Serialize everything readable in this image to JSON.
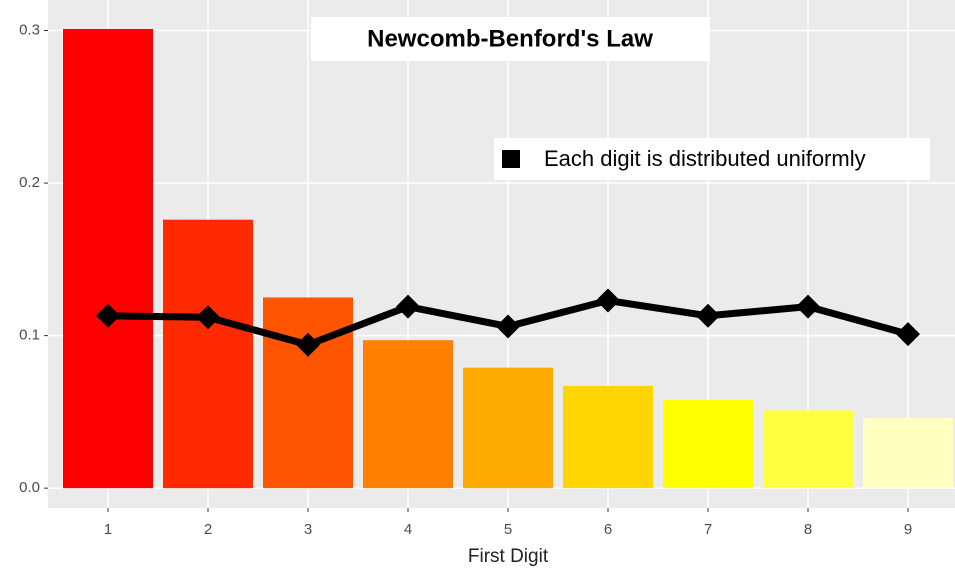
{
  "chart_data": {
    "type": "bar",
    "title": "Newcomb-Benford's Law",
    "x_label": "First Digit",
    "categories": [
      "1",
      "2",
      "3",
      "4",
      "5",
      "6",
      "7",
      "8",
      "9"
    ],
    "values": [
      0.301,
      0.176,
      0.125,
      0.097,
      0.079,
      0.067,
      0.058,
      0.051,
      0.046
    ],
    "colors": [
      "#ff0000",
      "#ff2a00",
      "#ff5500",
      "#ff8000",
      "#ffaa00",
      "#ffd500",
      "#ffff00",
      "#ffff40",
      "#ffffbf"
    ],
    "series": [
      {
        "name": "Each digit is distributed uniformly",
        "type": "line",
        "color": "#000000",
        "values": [
          0.113,
          0.112,
          0.094,
          0.119,
          0.106,
          0.123,
          0.113,
          0.119,
          0.101
        ]
      }
    ],
    "ylim": [
      -0.013,
      0.32
    ],
    "yticks": [
      {
        "value": 0,
        "label": "0.0"
      },
      0.1,
      0.2,
      0.3
    ],
    "grid": true,
    "legend": "top-right"
  }
}
